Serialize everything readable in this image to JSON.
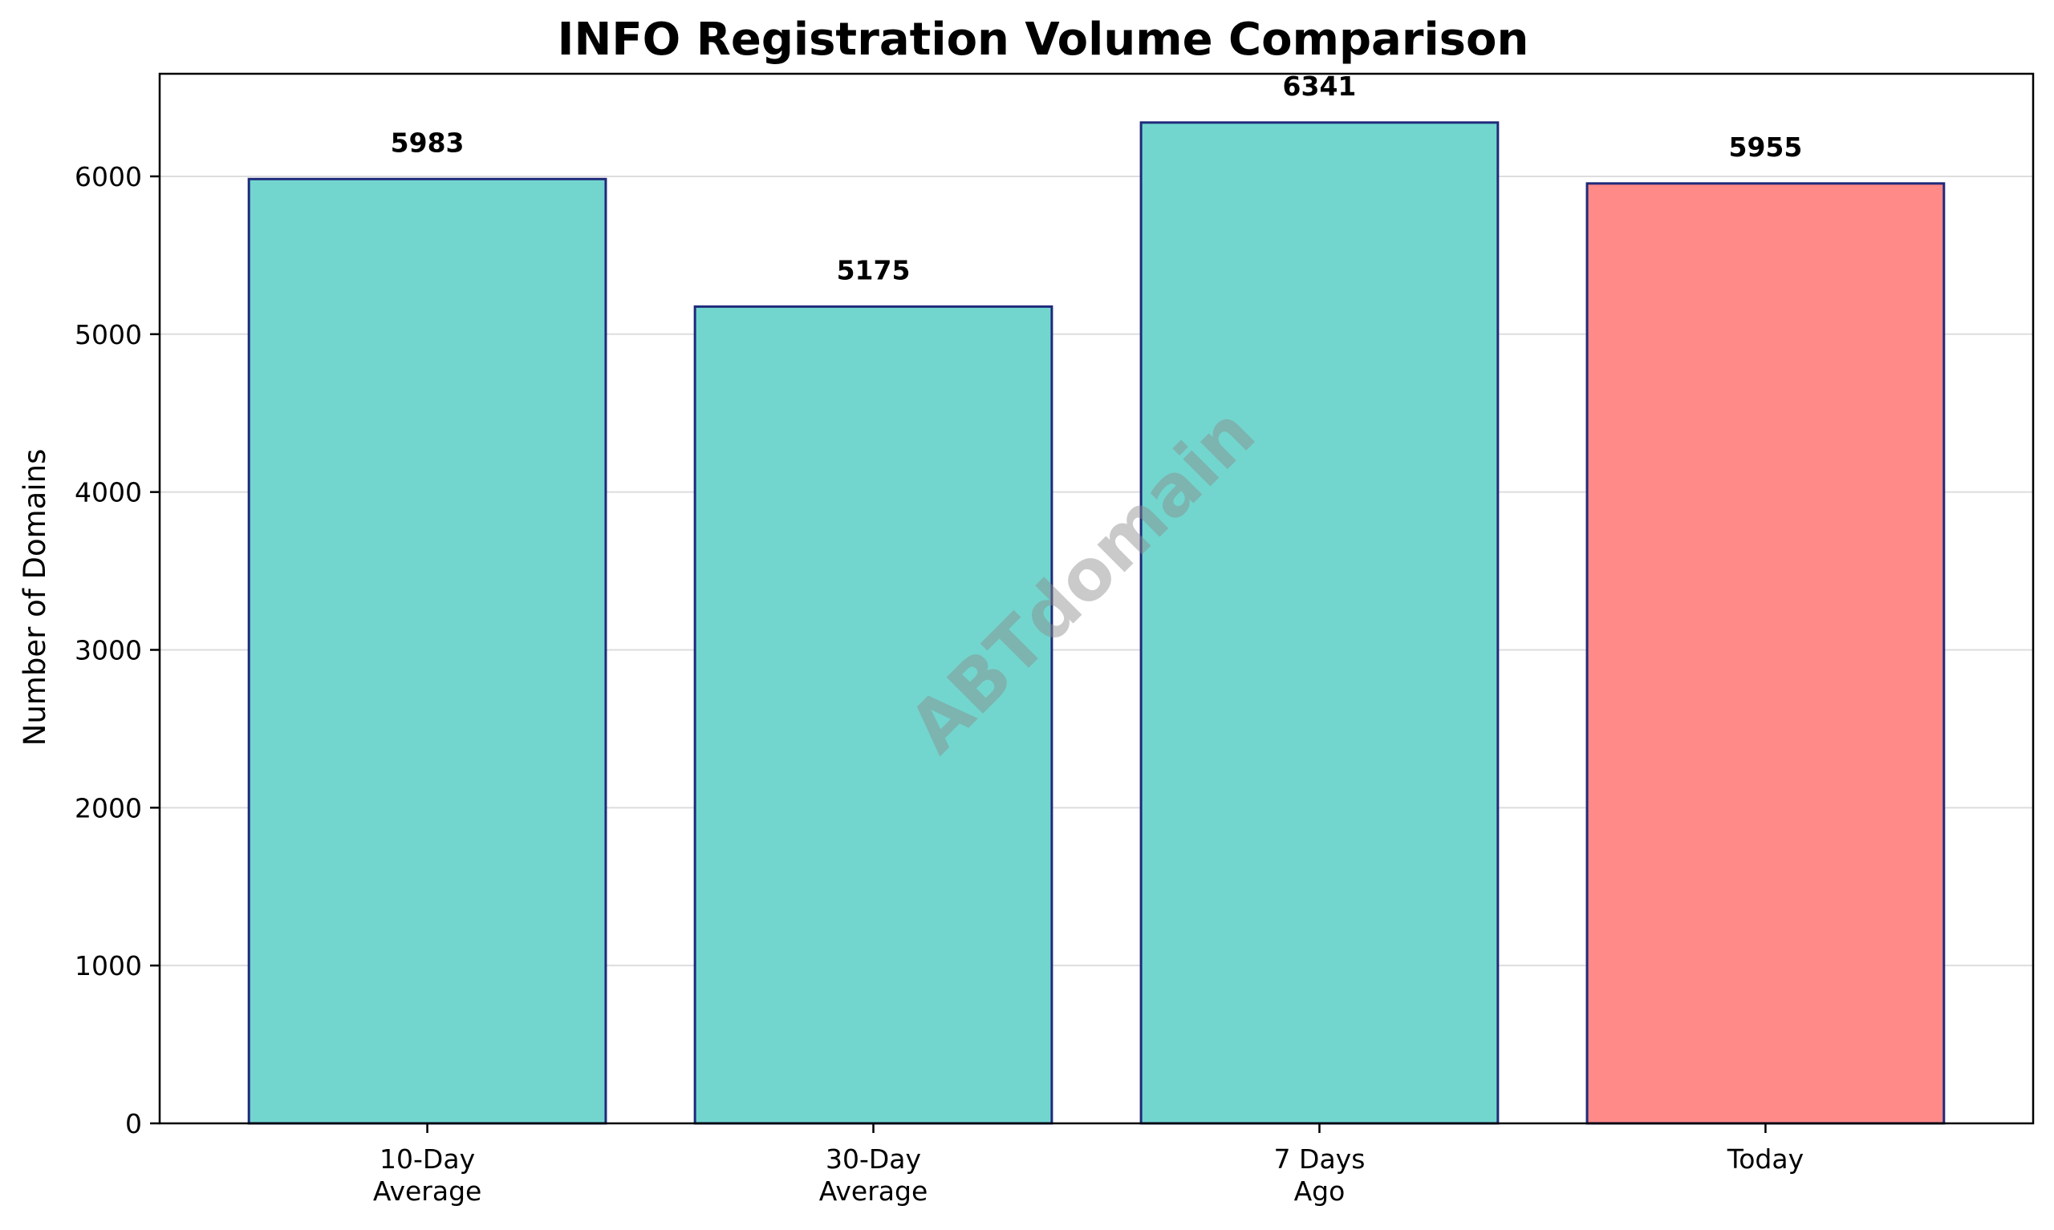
{
  "chart_data": {
    "type": "bar",
    "title": "INFO Registration Volume Comparison",
    "xlabel": "",
    "ylabel": "Number of Domains",
    "categories": [
      [
        "10-Day",
        "Average"
      ],
      [
        "30-Day",
        "Average"
      ],
      [
        "7 Days",
        "Ago"
      ],
      [
        "Today"
      ]
    ],
    "values": [
      5983,
      5175,
      6341,
      5955
    ],
    "data_labels": [
      "5983",
      "5175",
      "6341",
      "5955"
    ],
    "bar_colors": [
      "#72d6ce",
      "#72d6ce",
      "#72d6ce",
      "#ff8a87"
    ],
    "bar_edge_color": "#1f2a7a",
    "ylim": [
      0,
      6650
    ],
    "yticks": [
      0,
      1000,
      2000,
      3000,
      4000,
      5000,
      6000
    ],
    "grid": "y",
    "legend": "none"
  },
  "watermark": "ABTdomain"
}
